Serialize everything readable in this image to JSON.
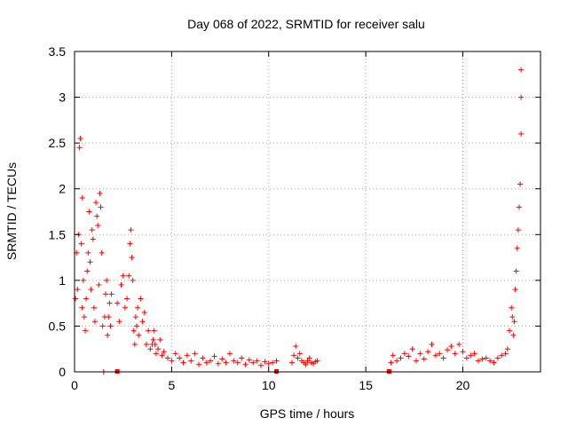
{
  "chart_data": {
    "type": "scatter",
    "title": "Day 068 of 2022, SRMTID for receiver salu",
    "xlabel": "GPS time / hours",
    "ylabel": "SRMTID / TECUs",
    "xlim": [
      0,
      24
    ],
    "ylim": [
      0,
      3.5
    ],
    "xticks": [
      0,
      5,
      10,
      15,
      20
    ],
    "xtick_labels": [
      "0",
      "5",
      "10",
      "15",
      "20"
    ],
    "yticks": [
      0,
      0.5,
      1,
      1.5,
      2,
      2.5,
      3,
      3.5
    ],
    "ytick_labels": [
      "0",
      "0.5",
      "1",
      "1.5",
      "2",
      "2.5",
      "3",
      "3.5"
    ],
    "grid": true,
    "marker": "+",
    "color": "#ff0000",
    "series": [
      {
        "name": "SRMTID",
        "x": [
          0.05,
          0.1,
          0.15,
          0.2,
          0.25,
          0.3,
          0.35,
          0.38,
          0.4,
          0.45,
          0.5,
          0.55,
          0.6,
          0.65,
          0.7,
          0.75,
          0.8,
          0.85,
          0.9,
          0.95,
          1.0,
          1.05,
          1.1,
          1.15,
          1.2,
          1.25,
          1.3,
          1.35,
          1.4,
          1.45,
          1.5,
          1.55,
          1.6,
          1.65,
          1.7,
          1.75,
          1.8,
          1.85,
          1.9,
          2.2,
          2.3,
          2.4,
          2.5,
          2.6,
          2.7,
          2.8,
          2.85,
          2.9,
          2.95,
          3.0,
          3.05,
          3.1,
          3.15,
          3.2,
          3.25,
          3.3,
          3.4,
          3.5,
          3.6,
          3.7,
          3.8,
          3.9,
          4.0,
          4.05,
          4.1,
          4.15,
          4.2,
          4.3,
          4.4,
          4.5,
          4.6,
          4.8,
          5.0,
          5.2,
          5.4,
          5.6,
          5.8,
          6.0,
          6.2,
          6.4,
          6.6,
          6.8,
          7.0,
          7.2,
          7.4,
          7.6,
          7.8,
          8.0,
          8.2,
          8.4,
          8.6,
          8.8,
          9.0,
          9.2,
          9.4,
          9.6,
          9.8,
          10.0,
          10.2,
          10.4,
          11.2,
          11.3,
          11.4,
          11.5,
          11.6,
          11.7,
          11.8,
          11.9,
          12.0,
          12.1,
          12.2,
          12.3,
          12.4,
          12.5,
          16.3,
          16.4,
          16.6,
          16.8,
          17.0,
          17.2,
          17.4,
          17.6,
          17.8,
          18.0,
          18.2,
          18.4,
          18.6,
          18.8,
          19.0,
          19.2,
          19.4,
          19.6,
          19.8,
          20.0,
          20.2,
          20.4,
          20.6,
          20.8,
          21.0,
          21.2,
          21.4,
          21.6,
          21.8,
          22.0,
          22.2,
          22.3,
          22.4,
          22.5,
          22.55,
          22.6,
          22.65,
          22.7,
          22.75,
          22.8,
          22.85,
          22.9,
          22.95,
          23.0,
          23.0,
          23.0
        ],
        "y": [
          0.8,
          1.3,
          0.9,
          1.5,
          2.45,
          2.55,
          1.4,
          0.7,
          1.9,
          1.0,
          0.6,
          0.45,
          0.8,
          1.1,
          1.3,
          1.75,
          1.2,
          0.9,
          1.55,
          1.45,
          0.7,
          0.55,
          1.85,
          1.7,
          1.6,
          0.95,
          1.95,
          1.8,
          1.3,
          0.5,
          0.0,
          0.6,
          0.85,
          1.0,
          0.4,
          0.6,
          0.75,
          0.5,
          0.85,
          0.75,
          0.55,
          0.95,
          1.05,
          0.7,
          0.8,
          1.05,
          1.4,
          1.55,
          1.25,
          1.0,
          0.45,
          0.3,
          0.6,
          0.5,
          0.7,
          0.4,
          0.8,
          0.55,
          0.65,
          0.3,
          0.45,
          0.25,
          0.3,
          0.35,
          0.45,
          0.3,
          0.2,
          0.25,
          0.35,
          0.18,
          0.22,
          0.15,
          0.12,
          0.2,
          0.15,
          0.1,
          0.18,
          0.12,
          0.2,
          0.08,
          0.15,
          0.1,
          0.12,
          0.17,
          0.09,
          0.14,
          0.1,
          0.2,
          0.12,
          0.1,
          0.15,
          0.08,
          0.13,
          0.1,
          0.12,
          0.07,
          0.11,
          0.09,
          0.1,
          0.12,
          0.1,
          0.18,
          0.28,
          0.15,
          0.2,
          0.12,
          0.1,
          0.08,
          0.12,
          0.15,
          0.1,
          0.09,
          0.11,
          0.12,
          0.1,
          0.18,
          0.12,
          0.15,
          0.2,
          0.17,
          0.25,
          0.12,
          0.2,
          0.14,
          0.22,
          0.3,
          0.18,
          0.2,
          0.15,
          0.24,
          0.28,
          0.2,
          0.3,
          0.22,
          0.15,
          0.18,
          0.2,
          0.12,
          0.14,
          0.15,
          0.12,
          0.1,
          0.15,
          0.18,
          0.2,
          0.25,
          0.45,
          0.7,
          0.6,
          0.4,
          0.55,
          0.9,
          1.1,
          1.35,
          1.55,
          1.8,
          2.05,
          2.6,
          3.0,
          3.3
        ]
      }
    ],
    "gap_markers_x": [
      2.2,
      10.4,
      16.2
    ]
  }
}
